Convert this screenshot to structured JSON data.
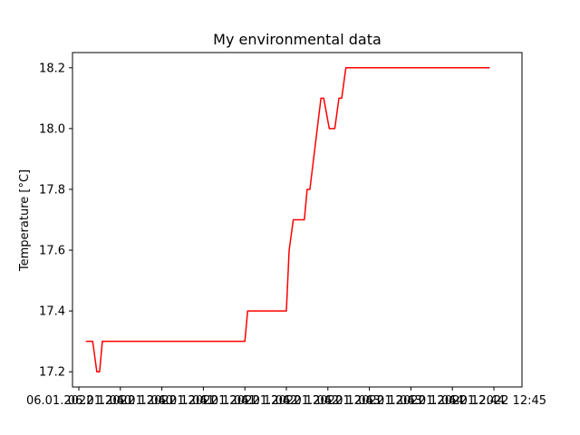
{
  "chart_data": {
    "type": "line",
    "title": "My environmental data",
    "xlabel": "",
    "ylabel": "Temperature [°C]",
    "ylim": [
      17.15,
      18.25
    ],
    "grid": false,
    "legend": "none",
    "x_tick_labels": [
      "06.01.2022 12:40",
      "06.01.2022 12:40",
      "06.01.2022 12:41",
      "06.01.2022 12:41",
      "06.01.2022 12:42",
      "06.01.2022 12:42",
      "06.01.2022 12:43",
      "06.01.2022 12:43",
      "06.01.2022 12:44",
      "06.01.2022 12:44",
      "06.01.2022 12:45"
    ],
    "x_tick_display": [
      "06.01.2022 12:40",
      "06.01.2022 12:40",
      "06.01.2022 12:41",
      "06.01.2022 12:41",
      "06.01.2022 12:42",
      "06.01.2022 12:42",
      "06.01.2022 12:43",
      "06.01.2022 12:43",
      "06.01.2022 12:44",
      "06.01.2022 12:44",
      "06.01.2022 12:45"
    ],
    "y_ticks": [
      17.2,
      17.4,
      17.6,
      17.8,
      18.0,
      18.2
    ],
    "y_tick_labels": [
      "17.2",
      "17.4",
      "17.6",
      "17.8",
      "18.0",
      "18.2"
    ],
    "series": [
      {
        "color": "#ff0000",
        "x": [
          "06.01.2022 12:40:05",
          "06.01.2022 12:40:10",
          "06.01.2022 12:40:13",
          "06.01.2022 12:40:15",
          "06.01.2022 12:40:17",
          "06.01.2022 12:40:20",
          "06.01.2022 12:42:00",
          "06.01.2022 12:42:02",
          "06.01.2022 12:42:30",
          "06.01.2022 12:42:32",
          "06.01.2022 12:42:35",
          "06.01.2022 12:42:43",
          "06.01.2022 12:42:45",
          "06.01.2022 12:42:47",
          "06.01.2022 12:42:55",
          "06.01.2022 12:42:57",
          "06.01.2022 12:43:01",
          "06.01.2022 12:43:05",
          "06.01.2022 12:43:08",
          "06.01.2022 12:43:10",
          "06.01.2022 12:43:13",
          "06.01.2022 12:43:15",
          "06.01.2022 12:43:18",
          "06.01.2022 12:44:57"
        ],
        "y": [
          17.3,
          17.3,
          17.2,
          17.2,
          17.3,
          17.3,
          17.3,
          17.4,
          17.4,
          17.6,
          17.7,
          17.7,
          17.8,
          17.8,
          18.1,
          18.1,
          18.0,
          18.0,
          18.1,
          18.1,
          18.2,
          18.2,
          18.2,
          18.2
        ]
      }
    ]
  }
}
